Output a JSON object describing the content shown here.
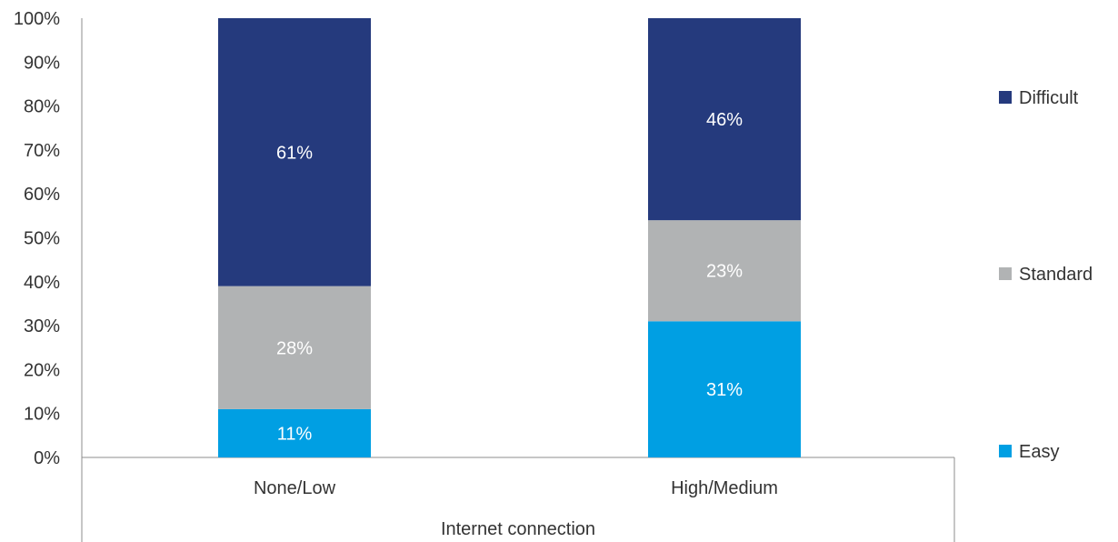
{
  "chart_data": {
    "type": "bar",
    "stacked": true,
    "percent_stacked": true,
    "categories": [
      "None/Low",
      "High/Medium"
    ],
    "group_label": "Internet connection",
    "series": [
      {
        "name": "Easy",
        "values": [
          11,
          31
        ],
        "labels": [
          "11%",
          "31%"
        ],
        "color": "#009fe3"
      },
      {
        "name": "Standard",
        "values": [
          28,
          23
        ],
        "labels": [
          "28%",
          "23%"
        ],
        "color": "#b1b3b4"
      },
      {
        "name": "Difficult",
        "values": [
          61,
          46
        ],
        "labels": [
          "61%",
          "46%"
        ],
        "color": "#253a7d"
      }
    ],
    "ylim": [
      0,
      100
    ],
    "yticks": [
      "0%",
      "10%",
      "20%",
      "30%",
      "40%",
      "50%",
      "60%",
      "70%",
      "80%",
      "90%",
      "100%"
    ],
    "grid": false,
    "legend": {
      "placement": "right",
      "order": [
        "Difficult",
        "Standard",
        "Easy"
      ]
    }
  }
}
